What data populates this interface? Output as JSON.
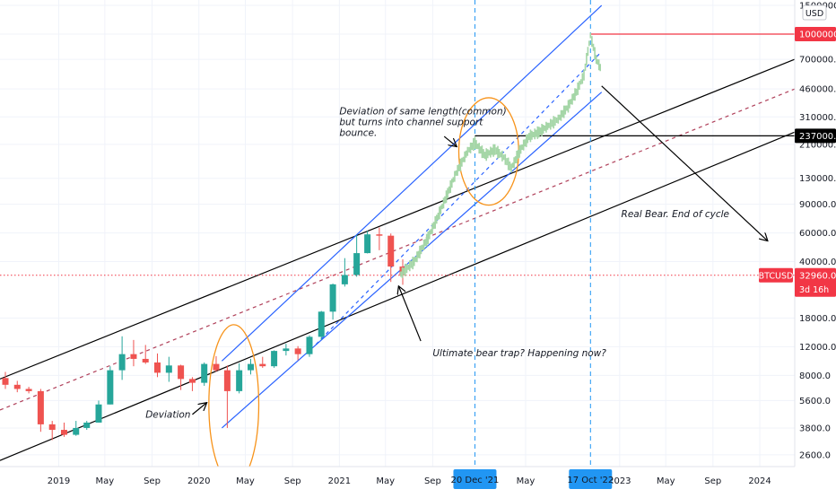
{
  "chart_data": {
    "type": "candlestick",
    "symbol": "BTCUSD",
    "currency": "USD",
    "y_scale": "log",
    "ylim": [
      2200,
      1620000
    ],
    "xlim": [
      "2018-08-01",
      "2024-04-01"
    ],
    "price_ticks": [
      "1500000.0",
      "1000000.0",
      "700000.0",
      "460000.0",
      "310000.0",
      "210000.0",
      "130000.0",
      "90000.0",
      "60000.0",
      "40000.0",
      "32960.0",
      "18000.0",
      "12000.0",
      "8000.0",
      "5600.0",
      "3800.0",
      "2600.0"
    ],
    "price_tick_values": [
      1500000,
      1000000,
      700000,
      460000,
      310000,
      210000,
      130000,
      90000,
      60000,
      40000,
      32960,
      18000,
      12000,
      8000,
      5600,
      3800,
      2600
    ],
    "time_ticks": [
      {
        "label": "2019",
        "date": "2019-01-01"
      },
      {
        "label": "May",
        "date": "2019-05-01"
      },
      {
        "label": "Sep",
        "date": "2019-09-01"
      },
      {
        "label": "2020",
        "date": "2020-01-01"
      },
      {
        "label": "May",
        "date": "2020-05-01"
      },
      {
        "label": "Sep",
        "date": "2020-09-01"
      },
      {
        "label": "2021",
        "date": "2021-01-01"
      },
      {
        "label": "May",
        "date": "2021-05-01"
      },
      {
        "label": "Sep",
        "date": "2021-09-01"
      },
      {
        "label": "May",
        "date": "2022-05-01"
      },
      {
        "label": "2023",
        "date": "2023-01-01"
      },
      {
        "label": "May",
        "date": "2023-05-01"
      },
      {
        "label": "Sep",
        "date": "2023-09-01"
      },
      {
        "label": "2024",
        "date": "2024-01-01"
      }
    ],
    "date_markers": [
      {
        "label": "20 Dec '21",
        "date": "2021-12-20",
        "color": "#2196f3"
      },
      {
        "label": "17 Oct '22",
        "date": "2022-10-17",
        "color": "#2196f3"
      }
    ],
    "price_labels": [
      {
        "label": "1000000.0",
        "value": 1000000,
        "color": "#f23645"
      },
      {
        "label": "237000.0",
        "value": 237000,
        "color": "#000000"
      },
      {
        "label": "BTCUSD",
        "value": 32960,
        "color": "#f23645"
      },
      {
        "label": "32960.0",
        "value": 32960,
        "color": "#f23645"
      },
      {
        "label": "3d 16h",
        "value": 32960,
        "color": "#f23645"
      }
    ],
    "candles_actual": [
      {
        "date": "2018-08-01",
        "open": 7700,
        "close": 7000,
        "high": 8400,
        "low": 6600
      },
      {
        "date": "2018-09-01",
        "open": 7000,
        "close": 6600,
        "high": 7400,
        "low": 6300
      },
      {
        "date": "2018-10-01",
        "open": 6600,
        "close": 6400,
        "high": 6800,
        "low": 6200
      },
      {
        "date": "2018-11-01",
        "open": 6400,
        "close": 4000,
        "high": 6600,
        "low": 3600
      },
      {
        "date": "2018-12-01",
        "open": 4000,
        "close": 3700,
        "high": 4200,
        "low": 3200
      },
      {
        "date": "2019-01-01",
        "open": 3700,
        "close": 3450,
        "high": 4100,
        "low": 3350
      },
      {
        "date": "2019-02-01",
        "open": 3450,
        "close": 3800,
        "high": 4200,
        "low": 3400
      },
      {
        "date": "2019-03-01",
        "open": 3800,
        "close": 4100,
        "high": 4200,
        "low": 3700
      },
      {
        "date": "2019-04-01",
        "open": 4100,
        "close": 5300,
        "high": 5600,
        "low": 4100
      },
      {
        "date": "2019-05-01",
        "open": 5300,
        "close": 8600,
        "high": 9100,
        "low": 5300
      },
      {
        "date": "2019-06-01",
        "open": 8600,
        "close": 10800,
        "high": 13900,
        "low": 7500
      },
      {
        "date": "2019-07-01",
        "open": 10800,
        "close": 10100,
        "high": 13200,
        "low": 9100
      },
      {
        "date": "2019-08-01",
        "open": 10100,
        "close": 9600,
        "high": 12300,
        "low": 9400
      },
      {
        "date": "2019-09-01",
        "open": 9600,
        "close": 8300,
        "high": 10900,
        "low": 7800
      },
      {
        "date": "2019-10-01",
        "open": 8300,
        "close": 9200,
        "high": 10400,
        "low": 7300
      },
      {
        "date": "2019-11-01",
        "open": 9200,
        "close": 7600,
        "high": 9300,
        "low": 6500
      },
      {
        "date": "2019-12-01",
        "open": 7600,
        "close": 7200,
        "high": 7800,
        "low": 6400
      },
      {
        "date": "2020-01-01",
        "open": 7200,
        "close": 9400,
        "high": 9600,
        "low": 6900
      },
      {
        "date": "2020-02-01",
        "open": 9400,
        "close": 8600,
        "high": 10500,
        "low": 8400
      },
      {
        "date": "2020-03-01",
        "open": 8600,
        "close": 6400,
        "high": 9200,
        "low": 3800
      },
      {
        "date": "2020-04-01",
        "open": 6400,
        "close": 8600,
        "high": 9500,
        "low": 6200
      },
      {
        "date": "2020-05-01",
        "open": 8600,
        "close": 9400,
        "high": 10100,
        "low": 8100
      },
      {
        "date": "2020-06-01",
        "open": 9400,
        "close": 9100,
        "high": 10400,
        "low": 8900
      },
      {
        "date": "2020-07-01",
        "open": 9100,
        "close": 11300,
        "high": 11400,
        "low": 8900
      },
      {
        "date": "2020-08-01",
        "open": 11300,
        "close": 11700,
        "high": 12500,
        "low": 10600
      },
      {
        "date": "2020-09-01",
        "open": 11700,
        "close": 10800,
        "high": 12100,
        "low": 9900
      },
      {
        "date": "2020-10-01",
        "open": 10800,
        "close": 13800,
        "high": 14100,
        "low": 10400
      },
      {
        "date": "2020-11-01",
        "open": 13800,
        "close": 19700,
        "high": 19900,
        "low": 13200
      },
      {
        "date": "2020-12-01",
        "open": 19700,
        "close": 29000,
        "high": 29300,
        "low": 17600
      },
      {
        "date": "2021-01-01",
        "open": 29000,
        "close": 33100,
        "high": 42000,
        "low": 28100
      },
      {
        "date": "2021-02-01",
        "open": 33100,
        "close": 45100,
        "high": 58300,
        "low": 32300
      },
      {
        "date": "2021-03-01",
        "open": 45100,
        "close": 58800,
        "high": 61800,
        "low": 44900
      },
      {
        "date": "2021-04-01",
        "open": 58800,
        "close": 57700,
        "high": 64800,
        "low": 47000
      },
      {
        "date": "2021-05-01",
        "open": 57700,
        "close": 37300,
        "high": 59500,
        "low": 30000
      },
      {
        "date": "2021-06-01",
        "open": 37300,
        "close": 32960,
        "high": 41300,
        "low": 28800
      }
    ],
    "projection_series": {
      "name": "",
      "note_color": "#a5d6a7",
      "x": [
        "2021-06-10",
        "2021-07-15",
        "2021-08-20",
        "2021-09-15",
        "2021-10-10",
        "2021-11-01",
        "2021-12-01",
        "2021-12-20",
        "2022-01-15",
        "2022-02-10",
        "2022-03-05",
        "2022-03-25",
        "2022-04-15",
        "2022-05-10",
        "2022-06-05",
        "2022-07-01",
        "2022-07-25",
        "2022-08-20",
        "2022-09-10",
        "2022-09-30",
        "2022-10-17",
        "2022-11-01",
        "2022-11-15"
      ],
      "y": [
        33500,
        40000,
        56000,
        76000,
        105000,
        140000,
        190000,
        215000,
        180000,
        195000,
        175000,
        150000,
        190000,
        235000,
        250000,
        275000,
        300000,
        360000,
        440000,
        560000,
        980000,
        700000,
        600000
      ]
    },
    "trendlines": [
      {
        "name": "outer-channel-upper",
        "color": "#000000",
        "x1": "2018-08-01",
        "y1": 7600,
        "x2": "2024-04-01",
        "y2": 700000
      },
      {
        "name": "outer-channel-lower",
        "color": "#000000",
        "x1": "2018-08-01",
        "y1": 2400,
        "x2": "2024-04-01",
        "y2": 250000
      },
      {
        "name": "outer-channel-mid",
        "color": "#b0405a",
        "dashed": true,
        "x1": "2018-08-01",
        "y1": 4900,
        "x2": "2024-04-01",
        "y2": 460000
      },
      {
        "name": "inner-channel-upper",
        "color": "#2962ff",
        "x1": "2020-03-01",
        "y1": 9800,
        "x2": "2022-11-15",
        "y2": 1500000
      },
      {
        "name": "inner-channel-lower",
        "color": "#2962ff",
        "x1": "2020-03-01",
        "y1": 3800,
        "x2": "2022-11-15",
        "y2": 440000
      },
      {
        "name": "inner-channel-mid",
        "color": "#2962ff",
        "dashed": true,
        "x1": "2020-11-01",
        "y1": 12400,
        "x2": "2022-11-15",
        "y2": 780000
      },
      {
        "name": "target-line-1m",
        "color": "#f23645",
        "x1": "2022-10-17",
        "y1": 1000000,
        "x2": "2024-04-01",
        "y2": 1000000
      },
      {
        "name": "level-237k",
        "color": "#000000",
        "x1": "2021-12-20",
        "y1": 237000,
        "x2": "2024-04-01",
        "y2": 237000
      },
      {
        "name": "current-price-line",
        "color": "#f23645",
        "dotted": true,
        "x1": "2018-08-01",
        "y1": 32960,
        "x2": "2024-04-01",
        "y2": 32960
      }
    ],
    "annotations": [
      {
        "text_lines": [
          "Deviation of same length(common)",
          "but turns into channel support",
          "bounce."
        ],
        "date": "2021-01-01",
        "value": 320000,
        "align": "start"
      },
      {
        "text_lines": [
          "Real Bear. End of cycle"
        ],
        "date": "2023-01-05",
        "value": 75000,
        "align": "start"
      },
      {
        "text_lines": [
          "Ultimate bear trap? Happening now?"
        ],
        "date": "2021-09-01",
        "value": 10500,
        "align": "start"
      },
      {
        "text_lines": [
          "Deviation"
        ],
        "date": "2019-08-15",
        "value": 4400,
        "align": "start"
      }
    ],
    "arrows": [
      {
        "from_date": "2021-10-01",
        "from_value": 235000,
        "to_date": "2021-11-01",
        "to_value": 205000,
        "color": "#000000"
      },
      {
        "from_date": "2022-11-15",
        "from_value": 480000,
        "to_date": "2024-01-20",
        "to_value": 54000,
        "color": "#000000"
      },
      {
        "from_date": "2021-08-01",
        "from_value": 13000,
        "to_date": "2021-06-05",
        "to_value": 28000,
        "color": "#000000"
      },
      {
        "from_date": "2019-12-15",
        "from_value": 4600,
        "to_date": "2020-01-20",
        "to_value": 5400,
        "color": "#000000"
      }
    ],
    "circles": [
      {
        "date": "2020-04-01",
        "value": 5300,
        "color": "#f7931a",
        "rx_days": 65,
        "ry_decades": 0.49
      },
      {
        "date": "2022-01-25",
        "value": 190000,
        "color": "#f7931a",
        "rx_days": 78,
        "ry_decades": 0.33
      }
    ],
    "colors": {
      "up": "#26a69a",
      "down": "#ef5350",
      "projection": "#a5d6a7",
      "grid": "#f0f3fa",
      "marker": "#2196f3"
    }
  }
}
